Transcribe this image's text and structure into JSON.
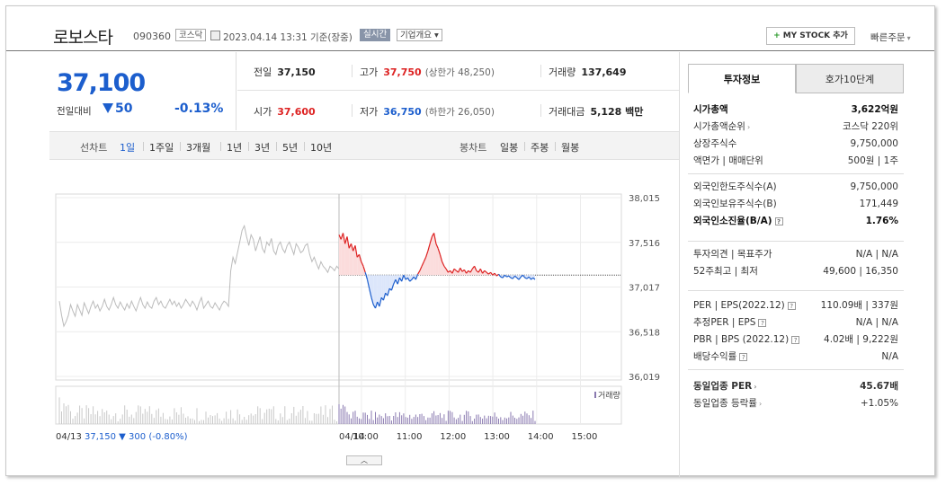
{
  "header": {
    "name": "로보스타",
    "code": "090360",
    "market": "코스닥",
    "datetime": "2023.04.14 13:31 기준(장중)",
    "realtime": "실시간",
    "overview": "기업개요 ▾",
    "mystock": "MY STOCK 추가",
    "quick": "빠른주문"
  },
  "price": {
    "current": "37,100",
    "compare_label": "전일대비",
    "change": "50",
    "change_pct": "-0.13%"
  },
  "stats": {
    "prev_label": "전일",
    "prev": "37,150",
    "high_label": "고가",
    "high": "37,750",
    "upper_limit": "(상한가 48,250)",
    "volume_label": "거래량",
    "volume": "137,649",
    "open_label": "시가",
    "open": "37,600",
    "low_label": "저가",
    "low": "36,750",
    "lower_limit": "(하한가 26,050)",
    "amount_label": "거래대금",
    "amount": "5,128 백만"
  },
  "periods": {
    "line_label": "선차트",
    "line_items": [
      "1일",
      "1주일",
      "3개월",
      "1년",
      "3년",
      "5년",
      "10년"
    ],
    "candle_label": "봉차트",
    "candle_items": [
      "일봉",
      "주봉",
      "월봉"
    ]
  },
  "chart_data": {
    "type": "line",
    "y_ticks": [
      "38,015",
      "37,516",
      "37,017",
      "36,518",
      "36,019"
    ],
    "ylim": [
      36019,
      38015
    ],
    "x_ticks": [
      "04/14",
      "10:00",
      "11:00",
      "12:00",
      "13:00",
      "14:00",
      "15:00"
    ],
    "base_price": 37150,
    "prev_day_series": [
      36860,
      36700,
      36580,
      36630,
      36700,
      36820,
      36750,
      36690,
      36820,
      36760,
      36700,
      36840,
      36780,
      36720,
      36800,
      36860,
      36780,
      36820,
      36750,
      36800,
      36880,
      36800,
      36760,
      36820,
      36900,
      36820,
      36780,
      36850,
      36800,
      36760,
      36830,
      36780,
      36860,
      36800,
      36750,
      36830,
      36900,
      36820,
      36780,
      36850,
      36800,
      36780,
      36860,
      36900,
      36820,
      36860,
      36800,
      36780,
      36830,
      36880,
      36820,
      36860,
      36800,
      36840,
      36780,
      36820,
      36880,
      36840,
      36800,
      36860,
      36820,
      36760,
      36840,
      36900,
      36780,
      36820,
      36860,
      36800,
      36780,
      36840,
      36800,
      36760,
      36820,
      36860,
      36840,
      36800,
      37200,
      37350,
      37280,
      37400,
      37520,
      37650,
      37700,
      37580,
      37480,
      37600,
      37550,
      37420,
      37500,
      37580,
      37450,
      37400,
      37520,
      37480,
      37560,
      37420,
      37380,
      37480,
      37520,
      37440,
      37400,
      37480,
      37520,
      37450,
      37380,
      37500,
      37460,
      37400,
      37420,
      37480,
      37500,
      37380,
      37300,
      37350,
      37280,
      37220,
      37300,
      37250,
      37220,
      37180,
      37250,
      37230,
      37200,
      37250,
      37220
    ],
    "today_series": [
      37600,
      37550,
      37620,
      37500,
      37580,
      37450,
      37500,
      37420,
      37480,
      37350,
      37380,
      37300,
      37250,
      37180,
      37100,
      37000,
      36900,
      36820,
      36780,
      36850,
      36800,
      36900,
      36870,
      36950,
      36920,
      37000,
      36980,
      37050,
      37100,
      37050,
      37120,
      37080,
      37150,
      37100,
      37120,
      37080,
      37100,
      37130,
      37100,
      37160,
      37200,
      37250,
      37300,
      37350,
      37420,
      37500,
      37580,
      37620,
      37500,
      37450,
      37380,
      37300,
      37250,
      37220,
      37180,
      37200,
      37170,
      37220,
      37200,
      37180,
      37230,
      37190,
      37210,
      37170,
      37200,
      37180,
      37220,
      37250,
      37200,
      37180,
      37220,
      37170,
      37200,
      37180,
      37160,
      37180,
      37150,
      37170,
      37140,
      37160,
      37130,
      37120,
      37150,
      37130,
      37140,
      37120,
      37110,
      37140,
      37120,
      37100,
      37130,
      37150,
      37120,
      37110,
      37130,
      37100,
      37120,
      37100
    ],
    "volume_label": "거래량",
    "prev_info_date": "04/13",
    "prev_info_close": "37,150",
    "prev_info_change": "▼ 300",
    "prev_info_pct": "(-0.80%)"
  },
  "panel": {
    "tab_info": "투자정보",
    "tab_quote": "호가10단계",
    "rows1": [
      {
        "k": "시가총액",
        "v": "3,622억원"
      },
      {
        "k": "시가총액순위",
        "v": "코스닥 220위"
      },
      {
        "k": "상장주식수",
        "v": "9,750,000"
      },
      {
        "k": "액면가 | 매매단위",
        "v": "500원 | 1주"
      }
    ],
    "rows2": [
      {
        "k": "외국인한도주식수(A)",
        "v": "9,750,000"
      },
      {
        "k": "외국인보유주식수(B)",
        "v": "171,449"
      },
      {
        "k": "외국인소진율(B/A)",
        "v": "1.76%"
      }
    ],
    "rows3": [
      {
        "k": "투자의견 | 목표주가",
        "v": "N/A | N/A"
      },
      {
        "k": "52주최고 | 최저",
        "v": "49,600 | 16,350"
      }
    ],
    "rows4": [
      {
        "k": "PER | EPS(2022.12)",
        "v": "110.09배 | 337원"
      },
      {
        "k": "추정PER | EPS",
        "v": "N/A | N/A"
      },
      {
        "k": "PBR | BPS (2022.12)",
        "v": "4.02배 | 9,222원"
      },
      {
        "k": "배당수익률",
        "v": "N/A"
      }
    ],
    "rows5": [
      {
        "k": "동일업종 PER",
        "v": "45.67배"
      },
      {
        "k": "동일업종 등락률",
        "v": "+1.05%"
      }
    ]
  },
  "colors": {
    "up": "#dd2222",
    "down": "#1c5ecd",
    "prev": "#bbbbbb"
  }
}
